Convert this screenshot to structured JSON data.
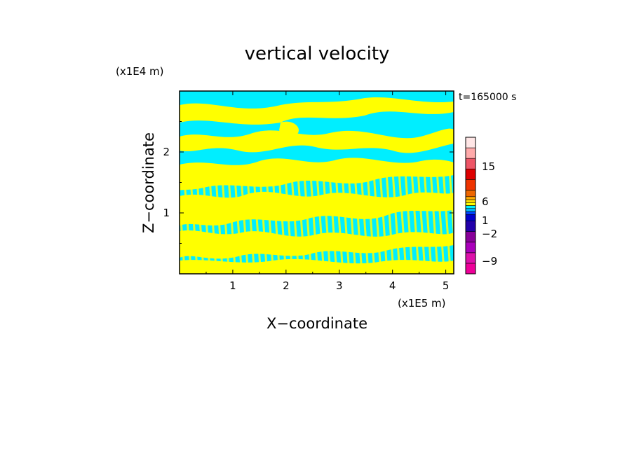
{
  "chart_data": {
    "type": "heatmap",
    "title": "vertical velocity",
    "xlabel": "X−coordinate",
    "ylabel": "Z−coordinate",
    "x_unit": "(x1E5 m)",
    "y_unit": "(x1E4 m)",
    "time_label": "t=165000 s",
    "xlim": [
      0,
      5.15
    ],
    "ylim": [
      0,
      3.0
    ],
    "x_ticks": [
      1,
      2,
      3,
      4,
      5
    ],
    "y_ticks": [
      1,
      2
    ],
    "x_tick_labels": [
      "1",
      "2",
      "3",
      "4",
      "5"
    ],
    "y_tick_labels": [
      "1",
      "2"
    ],
    "field_colors": {
      "positive": "#ffff00",
      "negative": "#00eeff"
    },
    "colorbar": {
      "levels": [
        "15",
        "6",
        "1",
        "−2",
        "−9"
      ],
      "bands": [
        "#ee0099",
        "#dd11aa",
        "#aa00bb",
        "#880099",
        "#2200aa",
        "#0000cc",
        "#0044ff",
        "#00bbff",
        "#00eeff",
        "#ffff00",
        "#ffdd00",
        "#ffaa00",
        "#ee6600",
        "#ee3300",
        "#dd0000",
        "#ee5566",
        "#ffaaaa",
        "#ffe6e6"
      ]
    }
  }
}
